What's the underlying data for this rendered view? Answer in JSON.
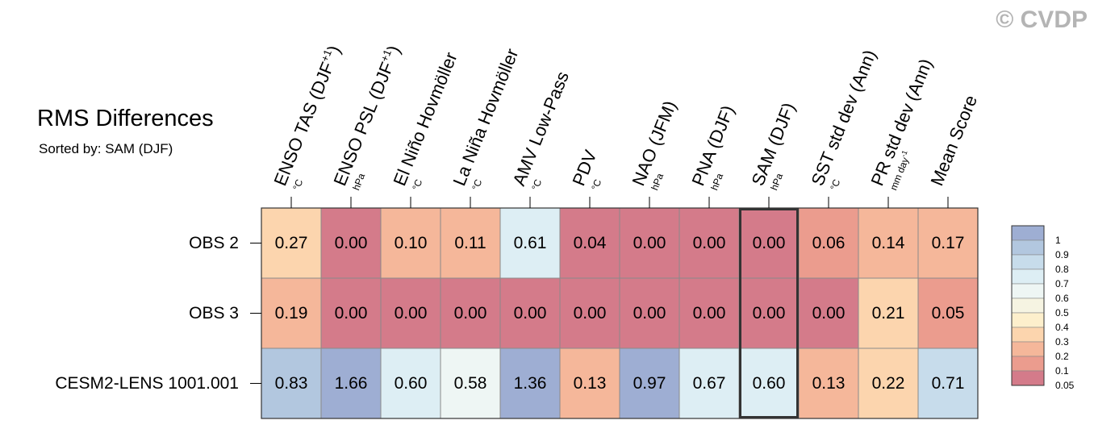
{
  "watermark": "© CVDP",
  "title": "RMS Differences",
  "subtitle": "Sorted by: SAM (DJF)",
  "highlight_column": 8,
  "chart_data": {
    "type": "heatmap",
    "columns": [
      {
        "label": "ENSO TAS (DJF",
        "sup": "+1",
        "close": ")",
        "unit": "°C"
      },
      {
        "label": "ENSO PSL (DJF",
        "sup": "+1",
        "close": ")",
        "unit": "hPa"
      },
      {
        "label": "El Niño Hovmöller",
        "sup": "",
        "close": "",
        "unit": "°C"
      },
      {
        "label": "La Niña Hovmöller",
        "sup": "",
        "close": "",
        "unit": "°C"
      },
      {
        "label": "AMV Low-Pass",
        "sup": "",
        "close": "",
        "unit": "°C"
      },
      {
        "label": "PDV",
        "sup": "",
        "close": "",
        "unit": "°C"
      },
      {
        "label": "NAO (JFM)",
        "sup": "",
        "close": "",
        "unit": "hPa"
      },
      {
        "label": "PNA (DJF)",
        "sup": "",
        "close": "",
        "unit": "hPa"
      },
      {
        "label": "SAM (DJF)",
        "sup": "",
        "close": "",
        "unit": "hPa"
      },
      {
        "label": "SST std dev (Ann)",
        "sup": "",
        "close": "",
        "unit": "°C"
      },
      {
        "label": "PR std dev (Ann)",
        "sup": "",
        "close": "",
        "unit": "mm day",
        "unit_sup": "-1"
      },
      {
        "label": "Mean Score",
        "sup": "",
        "close": "",
        "unit": ""
      }
    ],
    "rows": [
      "OBS 2",
      "OBS 3",
      "CESM2-LENS 1001.001"
    ],
    "values": [
      [
        "0.27",
        "0.00",
        "0.10",
        "0.11",
        "0.61",
        "0.04",
        "0.00",
        "0.00",
        "0.00",
        "0.06",
        "0.14",
        "0.17"
      ],
      [
        "0.19",
        "0.00",
        "0.00",
        "0.00",
        "0.00",
        "0.00",
        "0.00",
        "0.00",
        "0.00",
        "0.00",
        "0.21",
        "0.05"
      ],
      [
        "0.83",
        "1.66",
        "0.60",
        "0.58",
        "1.36",
        "0.13",
        "0.97",
        "0.67",
        "0.60",
        "0.13",
        "0.22",
        "0.71"
      ]
    ],
    "colorbar": {
      "labels": [
        "1",
        "0.9",
        "0.8",
        "0.7",
        "0.6",
        "0.5",
        "0.4",
        "0.3",
        "0.2",
        "0.1",
        "0.05"
      ],
      "colors_top_to_bottom": [
        "#9eaed3",
        "#b2c7df",
        "#c7dceb",
        "#ddeef4",
        "#eef6f4",
        "#f6f4e2",
        "#fdefcc",
        "#fcd5ae",
        "#f5b79a",
        "#eb9c8e",
        "#d47b8a"
      ]
    }
  }
}
